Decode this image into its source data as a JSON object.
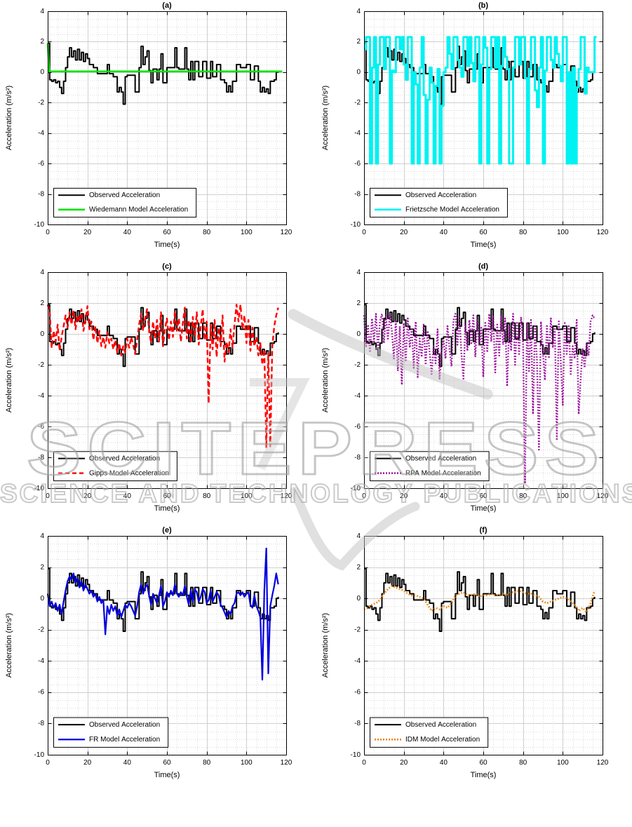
{
  "figure": {
    "background": "#ffffff"
  },
  "watermark": {
    "line1": "SCITEPRESS",
    "line2": "SCIENCE AND TECHNOLOGY PUBLICATIONS",
    "color": "#9e9e9e"
  },
  "shared_series": {
    "observed": {
      "label": "Observed Acceleration",
      "color": "#000000",
      "t0": 0,
      "dt": 1,
      "values": [
        1.9,
        -0.5,
        -0.6,
        -0.5,
        -0.7,
        -0.6,
        -1.0,
        -1.4,
        -0.6,
        0.3,
        1.0,
        1.6,
        1.0,
        1.4,
        0.8,
        1.5,
        0.8,
        1.3,
        0.7,
        1.2,
        0.9,
        0.5,
        0.5,
        0.3,
        0.3,
        -0.1,
        -0.1,
        -0.1,
        -0.1,
        -0.1,
        0.5,
        -0.1,
        -0.1,
        -0.3,
        -0.3,
        -1.3,
        -1.0,
        -1.3,
        -2.1,
        -0.3,
        -0.2,
        -0.2,
        -0.2,
        -0.2,
        -1.3,
        -1.3,
        0.3,
        1.7,
        0.5,
        1.0,
        1.4,
        0.1,
        -0.7,
        0.2,
        0.2,
        -0.5,
        0.2,
        1.2,
        -0.7,
        -0.7,
        0.3,
        0.3,
        0.3,
        0.3,
        1.6,
        0.3,
        0.2,
        0.2,
        0.2,
        1.6,
        0.2,
        -0.5,
        0.7,
        -0.5,
        0.7,
        0.7,
        -0.3,
        -0.3,
        0.7,
        0.7,
        -0.4,
        -0.4,
        0.7,
        -0.3,
        -0.3,
        0.5,
        0.5,
        -0.5,
        -0.5,
        -0.7,
        -1.3,
        -0.9,
        -1.3,
        -0.6,
        -0.6,
        0.5,
        0.5,
        0.3,
        0.3,
        0.3,
        0.5,
        0.5,
        -0.5,
        -0.5,
        0.4,
        0.4,
        -0.6,
        -1.3,
        -1.0,
        -1.3,
        -1.1,
        -1.4,
        -0.6,
        -0.6,
        -0.5,
        0.0,
        0.1
      ]
    }
  },
  "chart_data": [
    {
      "type": "line",
      "title": "(a)",
      "xlabel": "Time(s)",
      "ylabel": "Acceleration (m/s²)",
      "xlim": [
        0,
        120
      ],
      "ylim": [
        -10,
        4
      ],
      "xticks": [
        0,
        20,
        40,
        60,
        80,
        100,
        120
      ],
      "yticks": [
        4,
        2,
        0,
        -2,
        -4,
        -6,
        -8,
        -10
      ],
      "grid": {
        "major": true,
        "minor": true
      },
      "legend_position": "bottom-left",
      "series": [
        {
          "name": "Observed Acceleration",
          "color": "#000000",
          "style": "solid",
          "width": 2,
          "mode": "step",
          "ref": "observed"
        },
        {
          "name": "Wiedemann Model Acceleration",
          "color": "#00e300",
          "style": "solid",
          "width": 2.6,
          "mode": "linear",
          "points": [
            [
              0,
              1.9
            ],
            [
              0.8,
              0.05
            ],
            [
              118,
              0.05
            ]
          ]
        }
      ]
    },
    {
      "type": "line",
      "title": "(b)",
      "xlabel": "Time(s)",
      "ylabel": "Acceleration (m/s²)",
      "xlim": [
        0,
        120
      ],
      "ylim": [
        -10,
        4
      ],
      "xticks": [
        0,
        20,
        40,
        60,
        80,
        100,
        120
      ],
      "yticks": [
        4,
        2,
        0,
        -2,
        -4,
        -6,
        -8,
        -10
      ],
      "grid": {
        "major": true,
        "minor": true
      },
      "legend_position": "bottom-left",
      "series": [
        {
          "name": "Observed Acceleration",
          "color": "#000000",
          "style": "solid",
          "width": 2,
          "mode": "step",
          "ref": "observed"
        },
        {
          "name": "Frietzsche Model Acceleration",
          "color": "#00f2f2",
          "style": "solid",
          "width": 3,
          "mode": "step",
          "t0": 0,
          "dt": 1,
          "values": [
            1.5,
            2.3,
            2.3,
            -6,
            0.3,
            2.3,
            -6,
            0.5,
            2.3,
            2.3,
            0.2,
            2.3,
            2.3,
            -6,
            0.1,
            0,
            2.3,
            2.3,
            1.5,
            2.3,
            0.5,
            -0.5,
            2.3,
            2.3,
            -6,
            0,
            -0.8,
            -6,
            0.3,
            2.3,
            -1.5,
            -6,
            -1.8,
            0.3,
            -0.7,
            -6,
            -0.9,
            0.2,
            -6,
            -2.2,
            0,
            0.3,
            2.3,
            1.2,
            0.2,
            2.3,
            2.3,
            0.8,
            0.3,
            -0.3,
            2.3,
            2.3,
            0.4,
            2.3,
            0.6,
            -0.6,
            2.3,
            2.3,
            -6,
            0.5,
            2.3,
            1.6,
            -6,
            0.2,
            2.3,
            2.3,
            0.3,
            2.3,
            -6,
            0.4,
            2.3,
            1.0,
            0.2,
            -6,
            -6,
            0.3,
            2.3,
            2.3,
            0.5,
            2.3,
            2.3,
            -0.4,
            -6,
            0.2,
            2.3,
            2.3,
            -1.2,
            -2.3,
            0.3,
            2.3,
            -6,
            0.1,
            2.3,
            2.3,
            0.8,
            0.3,
            2.3,
            1.2,
            0.4,
            -0.6,
            2.3,
            2.3,
            -6,
            0,
            -6,
            0.3,
            -6,
            -1.0,
            0.2,
            2.3,
            2.3,
            -1.4,
            0.3,
            0,
            0,
            0,
            2.3,
            2.3
          ]
        }
      ]
    },
    {
      "type": "line",
      "title": "(c)",
      "xlabel": "Time(s)",
      "ylabel": "Acceleration (m/s²)",
      "xlim": [
        0,
        120
      ],
      "ylim": [
        -10,
        4
      ],
      "xticks": [
        0,
        20,
        40,
        60,
        80,
        100,
        120
      ],
      "yticks": [
        4,
        2,
        0,
        -2,
        -4,
        -6,
        -8,
        -10
      ],
      "grid": {
        "major": true,
        "minor": true
      },
      "legend_position": "bottom-left",
      "series": [
        {
          "name": "Observed Acceleration",
          "color": "#000000",
          "style": "solid",
          "width": 2,
          "mode": "step",
          "ref": "observed"
        },
        {
          "name": "Gipps Model Acceleration",
          "color": "#ff0000",
          "style": "dashed",
          "width": 2.4,
          "mode": "linear",
          "t0": 0,
          "dt": 1,
          "values": [
            1.9,
            1.5,
            -0.9,
            0.2,
            -0.5,
            0.6,
            -1.1,
            -0.2,
            0.5,
            1.2,
            0.4,
            1.4,
            0.6,
            1.5,
            0.3,
            1.2,
            0.8,
            1.6,
            0.2,
            0.9,
            1.8,
            0.3,
            0.8,
            -0.4,
            0.5,
            -0.6,
            0.2,
            -0.8,
            -0.2,
            -0.9,
            0.1,
            -0.6,
            -0.3,
            -1.0,
            -0.4,
            -1.2,
            -0.6,
            -1.4,
            -0.8,
            -1.2,
            -0.3,
            -0.9,
            -0.2,
            -0.7,
            -1.3,
            -0.4,
            0.6,
            1.3,
            0.2,
            1.0,
            1.6,
            0.3,
            -0.6,
            0.8,
            -0.3,
            0.9,
            -0.5,
            1.4,
            -0.8,
            0.3,
            1.0,
            -0.4,
            0.8,
            -0.2,
            1.5,
            0.2,
            1.0,
            -0.5,
            0.7,
            1.7,
            -0.3,
            0.9,
            -0.6,
            1.1,
            -0.2,
            1.4,
            -0.7,
            0.5,
            1.6,
            -0.4,
            0.8,
            -4.5,
            0.6,
            -1.0,
            0.9,
            -1.5,
            0.4,
            -0.8,
            1.2,
            -1.8,
            -0.5,
            -1.2,
            0.3,
            -0.9,
            0.6,
            1.9,
            0.8,
            1.9,
            0.3,
            1.2,
            -0.6,
            0.9,
            -1.1,
            0.4,
            -0.8,
            -0.2,
            -1.4,
            -0.6,
            -2.0,
            -1.0,
            -7.4,
            -1.2,
            -7.3,
            -0.8,
            0.5,
            1.2,
            1.7
          ]
        }
      ]
    },
    {
      "type": "line",
      "title": "(d)",
      "xlabel": "Time(s)",
      "ylabel": "Acceleration (m/s²)",
      "xlim": [
        0,
        120
      ],
      "ylim": [
        -10,
        4
      ],
      "xticks": [
        0,
        20,
        40,
        60,
        80,
        100,
        120
      ],
      "yticks": [
        4,
        2,
        0,
        -2,
        -4,
        -6,
        -8,
        -10
      ],
      "grid": {
        "major": true,
        "minor": true
      },
      "legend_position": "bottom-left",
      "series": [
        {
          "name": "Observed Acceleration",
          "color": "#000000",
          "style": "solid",
          "width": 2,
          "mode": "step",
          "ref": "observed"
        },
        {
          "name": "RPA Model Acceleration",
          "color": "#990099",
          "style": "dotted",
          "width": 2.4,
          "mode": "linear",
          "t0": 0,
          "dt": 1,
          "values": [
            1.2,
            -0.8,
            0.6,
            -1.2,
            1.0,
            -0.5,
            1.3,
            -1.0,
            0.8,
            1.3,
            -0.6,
            1.2,
            -0.4,
            1.3,
            0.2,
            -1.6,
            0.9,
            -2.4,
            0.5,
            -3.3,
            0.7,
            -1.8,
            1.0,
            -0.9,
            0.4,
            -2.2,
            0.8,
            -2.8,
            -0.3,
            -1.5,
            0.6,
            -2.0,
            0.2,
            -1.2,
            -2.6,
            -0.8,
            -1.9,
            0.3,
            -2.9,
            -1.1,
            -0.4,
            -1.6,
            0.5,
            -1.0,
            -2.1,
            0.9,
            1.3,
            -0.7,
            1.1,
            -1.3,
            -2.9,
            0.6,
            -1.1,
            0.9,
            -0.6,
            1.2,
            -1.5,
            1.0,
            -0.8,
            0.4,
            -2.8,
            0.8,
            -1.2,
            1.3,
            -0.5,
            1.1,
            -2.5,
            0.6,
            -1.4,
            1.2,
            -0.7,
            1.0,
            -3.4,
            0.5,
            -1.1,
            1.3,
            -2.0,
            0.8,
            -1.3,
            1.1,
            -0.6,
            -9.7,
            0.7,
            -2.4,
            0.9,
            -5.2,
            0.5,
            -1.7,
            -7.5,
            0.8,
            -1.2,
            -3.0,
            0.6,
            -1.5,
            1.0,
            -0.9,
            0.4,
            -6.9,
            0.9,
            -1.8,
            -4.6,
            0.7,
            -1.3,
            0.5,
            -2.6,
            -0.8,
            -1.6,
            0.9,
            -5.2,
            -2.9,
            -1.0,
            -2.2,
            -0.6,
            -1.4,
            0.8,
            1.2,
            1.0
          ]
        }
      ]
    },
    {
      "type": "line",
      "title": "(e)",
      "xlabel": "Time(s)",
      "ylabel": "Acceleration (m/s²)",
      "xlim": [
        0,
        120
      ],
      "ylim": [
        -10,
        4
      ],
      "xticks": [
        0,
        20,
        40,
        60,
        80,
        100,
        120
      ],
      "yticks": [
        4,
        2,
        0,
        -2,
        -4,
        -6,
        -8,
        -10
      ],
      "grid": {
        "major": true,
        "minor": true
      },
      "legend_position": "bottom-left",
      "series": [
        {
          "name": "Observed Acceleration",
          "color": "#000000",
          "style": "solid",
          "width": 2,
          "mode": "step",
          "ref": "observed"
        },
        {
          "name": "FR Model Acceleration",
          "color": "#0000e0",
          "style": "solid",
          "width": 2.2,
          "mode": "linear",
          "t0": 0,
          "dt": 1,
          "values": [
            0.3,
            -0.5,
            -0.2,
            -0.6,
            -0.3,
            -0.8,
            -0.4,
            -1.0,
            -0.2,
            0.5,
            1.1,
            1.4,
            1.2,
            1.6,
            1.0,
            1.3,
            0.7,
            1.1,
            0.5,
            0.9,
            0.6,
            0.3,
            0.5,
            0.1,
            0.3,
            -0.2,
            0.1,
            -0.3,
            -0.1,
            -2.3,
            -0.5,
            -1.0,
            -0.4,
            -0.8,
            -0.5,
            -1.1,
            -0.7,
            -1.2,
            -0.8,
            -0.4,
            -0.6,
            -0.3,
            -0.5,
            -0.8,
            -1.1,
            -0.5,
            0.4,
            0.9,
            0.3,
            0.7,
            0.9,
            0.2,
            -0.4,
            0.3,
            0.0,
            -0.3,
            0.2,
            0.8,
            -0.5,
            -0.2,
            0.4,
            0.1,
            0.5,
            0.2,
            0.9,
            0.3,
            0.1,
            0.4,
            0.2,
            0.8,
            0.1,
            -0.4,
            0.5,
            -0.2,
            0.6,
            0.4,
            -0.2,
            0.1,
            0.6,
            0.4,
            -0.3,
            -0.1,
            0.5,
            -0.2,
            0.1,
            0.4,
            0.2,
            -0.4,
            -0.6,
            -0.9,
            -1.2,
            -0.8,
            -1.0,
            -0.5,
            -0.3,
            0.3,
            0.4,
            0.2,
            0.4,
            0.1,
            0.3,
            0.4,
            -0.4,
            -0.6,
            0.2,
            -0.5,
            -0.8,
            -1.2,
            -5.2,
            0.5,
            3.2,
            -4.8,
            -0.5,
            0.2,
            0.8,
            1.6,
            0.9
          ]
        }
      ]
    },
    {
      "type": "line",
      "title": "(f)",
      "xlabel": "Time(s)",
      "ylabel": "Acceleration (m/s²)",
      "xlim": [
        0,
        120
      ],
      "ylim": [
        -10,
        4
      ],
      "xticks": [
        0,
        20,
        40,
        60,
        80,
        100,
        120
      ],
      "yticks": [
        4,
        2,
        0,
        -2,
        -4,
        -6,
        -8,
        -10
      ],
      "grid": {
        "major": true,
        "minor": true
      },
      "legend_position": "bottom-left",
      "series": [
        {
          "name": "Observed Acceleration",
          "color": "#000000",
          "style": "solid",
          "width": 2,
          "mode": "step",
          "ref": "observed"
        },
        {
          "name": "IDM Model Acceleration",
          "color": "#e8820c",
          "style": "dotted",
          "width": 2.8,
          "mode": "linear",
          "t0": 0,
          "dt": 2,
          "values": [
            -0.7,
            -0.6,
            -0.4,
            -0.3,
            -0.1,
            0.3,
            0.6,
            0.8,
            0.7,
            0.6,
            0.5,
            0.3,
            0.2,
            0.2,
            0.1,
            0.0,
            -0.4,
            -0.8,
            -0.6,
            -0.7,
            -0.5,
            -0.6,
            -0.3,
            0.2,
            0.3,
            0.4,
            0.2,
            0.2,
            0.3,
            0.1,
            0.2,
            0.2,
            0.3,
            0.2,
            0.2,
            0.3,
            0.2,
            0.4,
            0.4,
            0.5,
            0.4,
            0.3,
            0.3,
            0.2,
            0.1,
            -0.2,
            -0.3,
            -0.2,
            -0.1,
            0.0,
            0.1,
            0.0,
            -0.2,
            -0.4,
            -0.8,
            -0.6,
            -0.9,
            -0.3,
            0.5
          ]
        }
      ]
    }
  ]
}
